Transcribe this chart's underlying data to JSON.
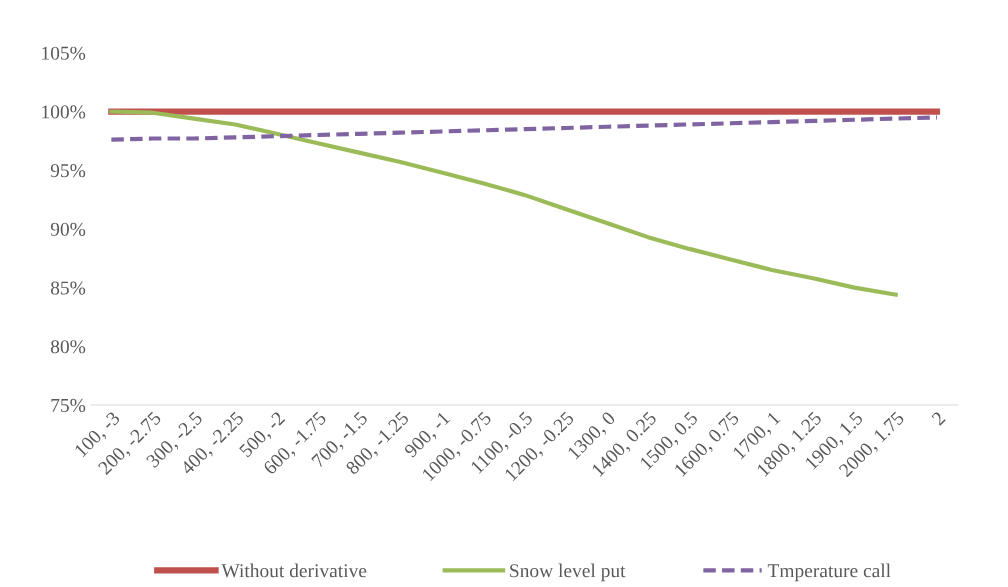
{
  "chart_data": {
    "type": "line",
    "categories": [
      "100, -3",
      "200, -2.75",
      "300, -2.5",
      "400, -2.25",
      "500, -2",
      "600, -1.75",
      "700, -1.5",
      "800, -1.25",
      "900, -1",
      "1000, -0.75",
      "1100, -0.5",
      "1200, -0.25",
      "1300, 0",
      "1400, 0.25",
      "1500, 0.5",
      "1600, 0.75",
      "1700, 1",
      "1800, 1.25",
      "1900, 1.5",
      "2000, 1.75",
      "2"
    ],
    "series": [
      {
        "name": "Without derivative",
        "color": "#c0504d",
        "line_style": "solid",
        "values": [
          100,
          100,
          100,
          100,
          100,
          100,
          100,
          100,
          100,
          100,
          100,
          100,
          100,
          100,
          100,
          100,
          100,
          100,
          100,
          100,
          100
        ]
      },
      {
        "name": "Snow level put",
        "color": "#9bbb59",
        "line_style": "solid",
        "values": [
          100,
          99.9,
          99.4,
          98.9,
          98.1,
          97.3,
          96.5,
          95.7,
          94.8,
          93.9,
          92.9,
          91.7,
          90.5,
          89.3,
          88.3,
          87.4,
          86.5,
          85.8,
          85.0,
          84.4,
          null
        ]
      },
      {
        "name": "Tmperature call",
        "color": "#8064a2",
        "line_style": "dashed",
        "values": [
          97.6,
          97.7,
          97.7,
          97.8,
          97.9,
          98.0,
          98.1,
          98.2,
          98.3,
          98.4,
          98.5,
          98.6,
          98.7,
          98.8,
          98.9,
          99.0,
          99.1,
          99.2,
          99.3,
          99.4,
          99.5
        ]
      }
    ],
    "ylim": [
      75,
      105
    ],
    "yticks": [
      {
        "value": 75,
        "label": "75%"
      },
      {
        "value": 80,
        "label": "80%"
      },
      {
        "value": 85,
        "label": "85%"
      },
      {
        "value": 90,
        "label": "90%"
      },
      {
        "value": 95,
        "label": "95%"
      },
      {
        "value": 100,
        "label": "100%"
      },
      {
        "value": 105,
        "label": "105%"
      }
    ],
    "grid": false,
    "legend": "bottom",
    "marker": "none"
  }
}
